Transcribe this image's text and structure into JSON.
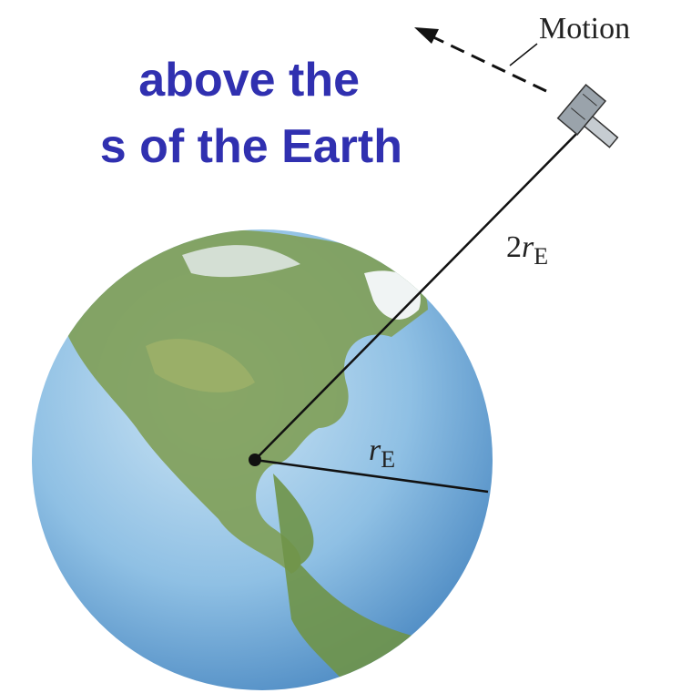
{
  "title": {
    "lines": [
      "above the",
      "s of the Earth"
    ]
  },
  "labels": {
    "motion": "Motion",
    "orbit_radius": {
      "coefficient": "2",
      "symbol": "r",
      "subscript": "E"
    },
    "earth_radius": {
      "symbol": "r",
      "subscript": "E"
    }
  }
}
